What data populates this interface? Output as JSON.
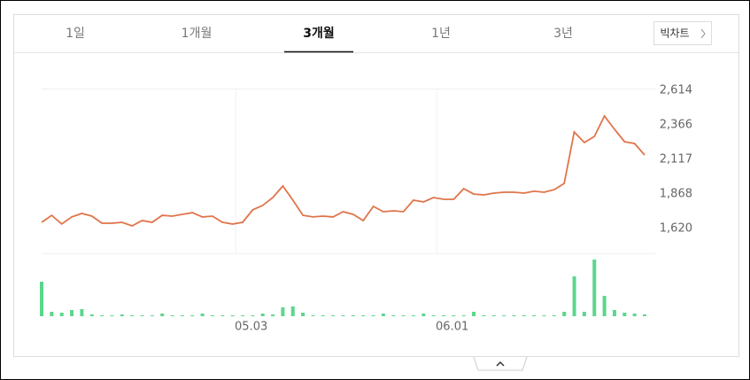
{
  "tabs": [
    "1일",
    "1개월",
    "3개월",
    "1년",
    "3년"
  ],
  "selected_tab": 2,
  "big_chart_button": "빅차트",
  "chart_data": [
    {
      "type": "line",
      "color": "#e0744a",
      "values": [
        1663,
        1714,
        1651,
        1702,
        1727,
        1708,
        1657,
        1657,
        1663,
        1638,
        1676,
        1663,
        1714,
        1708,
        1721,
        1733,
        1702,
        1708,
        1663,
        1651,
        1663,
        1753,
        1785,
        1842,
        1925,
        1823,
        1714,
        1702,
        1708,
        1702,
        1740,
        1721,
        1676,
        1778,
        1740,
        1746,
        1740,
        1823,
        1810,
        1842,
        1829,
        1829,
        1906,
        1867,
        1861,
        1874,
        1880,
        1880,
        1874,
        1887,
        1880,
        1899,
        1944,
        2314,
        2238,
        2282,
        2429,
        2333,
        2244,
        2231,
        2148
      ],
      "ylim": [
        1440,
        2614
      ],
      "yticks": [
        {
          "value": 1620,
          "label": "1,620"
        },
        {
          "value": 1868,
          "label": "1,868"
        },
        {
          "value": 2117,
          "label": "2,117"
        },
        {
          "value": 2366,
          "label": "2,366"
        },
        {
          "value": 2614,
          "label": "2,614"
        }
      ]
    },
    {
      "type": "bar",
      "color": "#5cd68c",
      "categories": [
        null,
        null,
        null,
        null,
        null,
        null,
        null,
        null,
        null,
        null,
        null,
        null,
        null,
        null,
        null,
        null,
        null,
        null,
        null,
        "05.03",
        null,
        null,
        null,
        null,
        null,
        null,
        null,
        null,
        null,
        null,
        null,
        null,
        null,
        null,
        null,
        null,
        null,
        null,
        null,
        "06.01",
        null,
        null,
        null,
        null,
        null,
        null,
        null,
        null,
        null,
        null,
        null,
        null,
        null,
        null,
        null,
        null,
        null,
        null,
        null,
        null,
        null
      ],
      "values": [
        39,
        5,
        4,
        7,
        8,
        2,
        1,
        1,
        2,
        1,
        1,
        1,
        3,
        1,
        1,
        1,
        3,
        1,
        1,
        1,
        1,
        1,
        3,
        2,
        10,
        11,
        4,
        1,
        1,
        1,
        1,
        1,
        1,
        1,
        3,
        1,
        1,
        1,
        3,
        1,
        1,
        1,
        1,
        5,
        1,
        1,
        1,
        1,
        1,
        1,
        1,
        1,
        5,
        45,
        5,
        64,
        23,
        7,
        4,
        3,
        2
      ],
      "ylim": [
        0,
        70
      ]
    }
  ]
}
